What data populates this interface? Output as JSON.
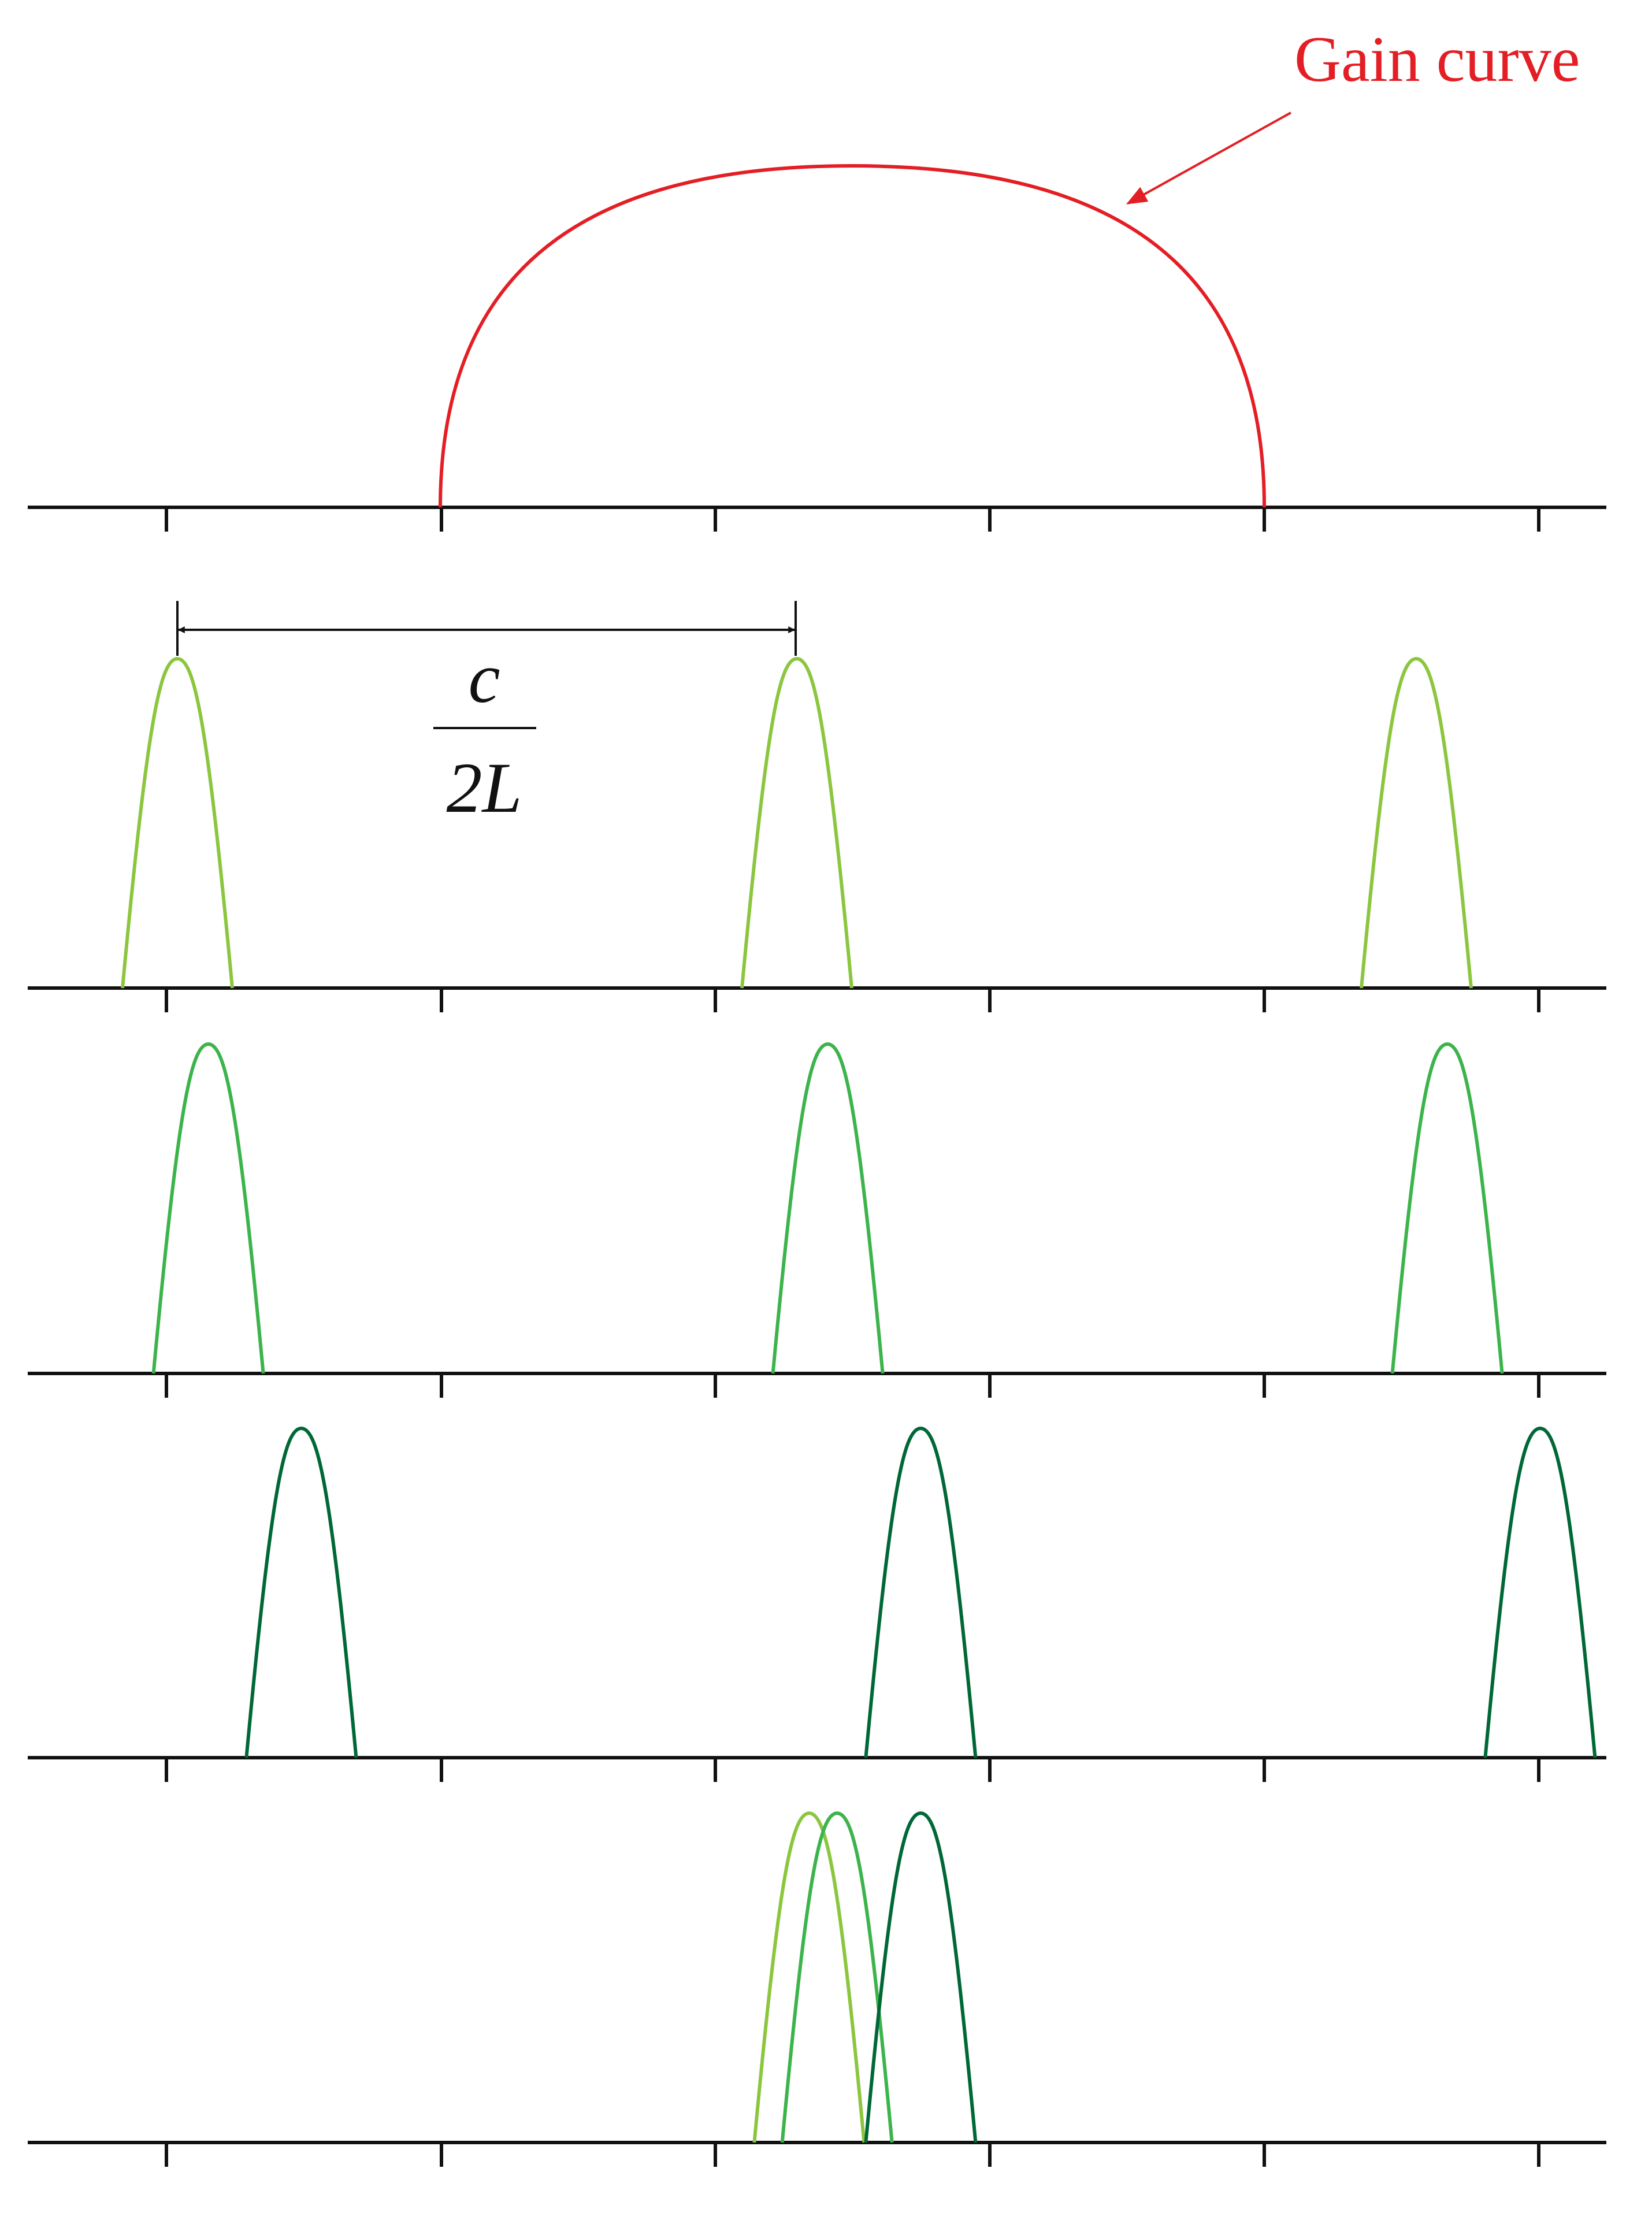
{
  "diagram": {
    "gain_label": "Gain curve",
    "spacing_numerator": "c",
    "spacing_denominator": "2L"
  },
  "colors": {
    "axis": "#111111",
    "gain": "#e31e24",
    "mode_light_green": "#8cc63f",
    "mode_green": "#3cb44b",
    "mode_dark_green": "#006837",
    "annotation": "#111111"
  },
  "panels": [
    {
      "name": "gain-panel",
      "curves": [
        {
          "type": "gain",
          "color_key": "gain"
        }
      ]
    },
    {
      "name": "modes-light",
      "curves": [
        {
          "type": "modes",
          "color_key": "mode_light_green",
          "offset": 0.0
        }
      ]
    },
    {
      "name": "modes-medium",
      "curves": [
        {
          "type": "modes",
          "color_key": "mode_green",
          "offset": 0.05
        }
      ]
    },
    {
      "name": "modes-dark",
      "curves": [
        {
          "type": "modes",
          "color_key": "mode_dark_green",
          "offset": 0.2
        }
      ]
    },
    {
      "name": "modes-combined",
      "curves": [
        {
          "type": "single",
          "color_key": "mode_light_green",
          "offset": 0.02
        },
        {
          "type": "single",
          "color_key": "mode_green",
          "offset": 0.065
        },
        {
          "type": "single",
          "color_key": "mode_dark_green",
          "offset": 0.2
        }
      ]
    }
  ]
}
